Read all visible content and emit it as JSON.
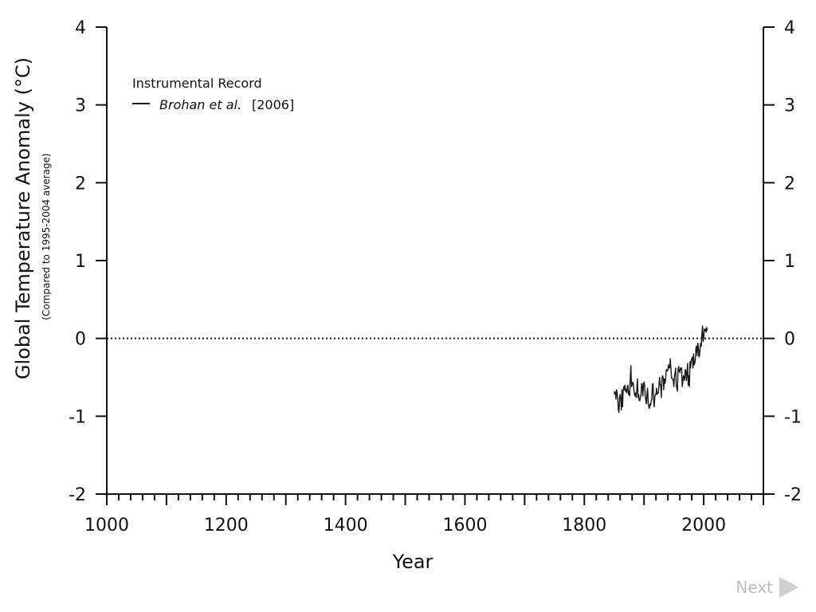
{
  "chart_data": {
    "type": "line",
    "title": "",
    "xlabel": "Year",
    "ylabel": "Global Temperature Anomaly (°C)",
    "ylabel_sub": "(Compared to 1995-2004 average)",
    "xlim": [
      1000,
      2100
    ],
    "ylim": [
      -2,
      4
    ],
    "x_ticks": [
      1000,
      1200,
      1400,
      1600,
      1800,
      2000
    ],
    "y_ticks": [
      -2,
      -1,
      0,
      1,
      2,
      3,
      4
    ],
    "y_tick_labels": [
      "-2",
      "-1",
      "0",
      "1",
      "2",
      "3",
      "4"
    ],
    "reference_line": {
      "y": 0,
      "style": "dotted"
    },
    "grid": false,
    "right_axis_mirror": true,
    "legend": {
      "title": "Instrumental Record",
      "placement": "top-left",
      "entries": [
        {
          "author": "Brohan et al.",
          "year_label": "[2006]"
        }
      ]
    },
    "series": [
      {
        "name": "Brohan et al. [2006]",
        "color": "#1a1a1a",
        "x": [
          1850,
          1851,
          1852,
          1853,
          1854,
          1855,
          1856,
          1857,
          1858,
          1859,
          1860,
          1861,
          1862,
          1863,
          1864,
          1865,
          1866,
          1867,
          1868,
          1869,
          1870,
          1871,
          1872,
          1873,
          1874,
          1875,
          1876,
          1877,
          1878,
          1879,
          1880,
          1881,
          1882,
          1883,
          1884,
          1885,
          1886,
          1887,
          1888,
          1889,
          1890,
          1891,
          1892,
          1893,
          1894,
          1895,
          1896,
          1897,
          1898,
          1899,
          1900,
          1901,
          1902,
          1903,
          1904,
          1905,
          1906,
          1907,
          1908,
          1909,
          1910,
          1911,
          1912,
          1913,
          1914,
          1915,
          1916,
          1917,
          1918,
          1919,
          1920,
          1921,
          1922,
          1923,
          1924,
          1925,
          1926,
          1927,
          1928,
          1929,
          1930,
          1931,
          1932,
          1933,
          1934,
          1935,
          1936,
          1937,
          1938,
          1939,
          1940,
          1941,
          1942,
          1943,
          1944,
          1945,
          1946,
          1947,
          1948,
          1949,
          1950,
          1951,
          1952,
          1953,
          1954,
          1955,
          1956,
          1957,
          1958,
          1959,
          1960,
          1961,
          1962,
          1963,
          1964,
          1965,
          1966,
          1967,
          1968,
          1969,
          1970,
          1971,
          1972,
          1973,
          1974,
          1975,
          1976,
          1977,
          1978,
          1979,
          1980,
          1981,
          1982,
          1983,
          1984,
          1985,
          1986,
          1987,
          1988,
          1989,
          1990,
          1991,
          1992,
          1993,
          1994,
          1995,
          1996,
          1997,
          1998,
          1999,
          2000,
          2001,
          2002,
          2003,
          2004,
          2005,
          2006
        ],
        "values": [
          -0.72,
          -0.68,
          -0.7,
          -0.78,
          -0.66,
          -0.7,
          -0.78,
          -0.92,
          -0.95,
          -0.76,
          -0.72,
          -0.78,
          -0.92,
          -0.66,
          -0.88,
          -0.68,
          -0.62,
          -0.66,
          -0.6,
          -0.68,
          -0.66,
          -0.7,
          -0.62,
          -0.6,
          -0.72,
          -0.68,
          -0.74,
          -0.5,
          -0.35,
          -0.62,
          -0.6,
          -0.56,
          -0.58,
          -0.66,
          -0.72,
          -0.74,
          -0.7,
          -0.76,
          -0.64,
          -0.52,
          -0.76,
          -0.72,
          -0.8,
          -0.8,
          -0.76,
          -0.72,
          -0.58,
          -0.58,
          -0.74,
          -0.62,
          -0.56,
          -0.6,
          -0.74,
          -0.8,
          -0.84,
          -0.7,
          -0.64,
          -0.84,
          -0.88,
          -0.9,
          -0.84,
          -0.86,
          -0.8,
          -0.78,
          -0.6,
          -0.58,
          -0.78,
          -0.88,
          -0.76,
          -0.72,
          -0.72,
          -0.64,
          -0.72,
          -0.7,
          -0.7,
          -0.62,
          -0.5,
          -0.6,
          -0.6,
          -0.76,
          -0.52,
          -0.48,
          -0.5,
          -0.66,
          -0.52,
          -0.58,
          -0.54,
          -0.42,
          -0.4,
          -0.42,
          -0.4,
          -0.34,
          -0.38,
          -0.38,
          -0.26,
          -0.38,
          -0.5,
          -0.52,
          -0.52,
          -0.54,
          -0.62,
          -0.48,
          -0.44,
          -0.38,
          -0.6,
          -0.64,
          -0.68,
          -0.4,
          -0.36,
          -0.42,
          -0.44,
          -0.38,
          -0.4,
          -0.38,
          -0.62,
          -0.56,
          -0.48,
          -0.5,
          -0.54,
          -0.4,
          -0.42,
          -0.54,
          -0.44,
          -0.32,
          -0.6,
          -0.48,
          -0.62,
          -0.3,
          -0.38,
          -0.28,
          -0.26,
          -0.24,
          -0.38,
          -0.2,
          -0.34,
          -0.32,
          -0.28,
          -0.12,
          -0.1,
          -0.22,
          -0.06,
          -0.1,
          -0.24,
          -0.22,
          -0.12,
          -0.06,
          -0.1,
          0.06,
          0.16,
          -0.04,
          0.0,
          0.12,
          0.1,
          0.12,
          0.08,
          0.14,
          0.1
        ]
      }
    ]
  },
  "nav": {
    "next_label": "Next",
    "next_icon": "play-triangle-right-icon"
  }
}
